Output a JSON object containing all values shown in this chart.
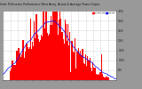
{
  "title": "Solar PV/Inverter Performance West Array  Actual & Average Power Output",
  "bg_color": "#999999",
  "plot_bg": "#ffffff",
  "grid_color": "#cccccc",
  "bar_color": "#ff0000",
  "avg_line_color": "#0000ff",
  "legend_actual_color": "#ff0000",
  "legend_avg_color": "#0000ff",
  "legend_actual": "Actual kW",
  "legend_avg": "Avg kW",
  "ylim": [
    0,
    3500
  ],
  "yticks": [
    500,
    1000,
    1500,
    2000,
    2500,
    3000,
    3500
  ],
  "n_points": 288
}
